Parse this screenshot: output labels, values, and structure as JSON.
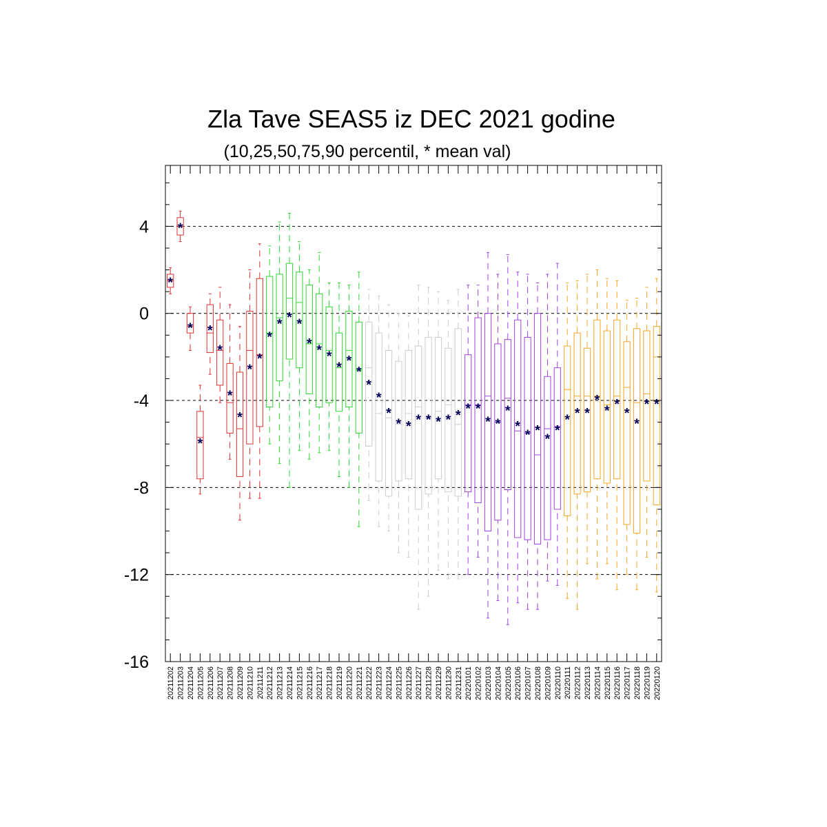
{
  "chart_data": {
    "type": "box",
    "title": "Zla Tave SEAS5 iz DEC 2021 godine",
    "subtitle": "(10,25,50,75,90 percentil, * mean val)",
    "xlabel": "",
    "ylabel": "",
    "ylim": [
      -16,
      6.8
    ],
    "yticks": [
      4,
      0,
      -4,
      -8,
      -12,
      -16
    ],
    "ytick_labels": [
      "4",
      "0",
      "-4",
      "-8",
      "-12",
      "-16"
    ],
    "grid": "dashed horizontal lines at major ticks",
    "colors": {
      "red": "#e03030",
      "green": "#2ed82e",
      "grey": "#cccccc",
      "purple": "#a040e0",
      "orange": "#f5a623",
      "mean_marker": "#00005a"
    },
    "categories": [
      "20211202",
      "20211203",
      "20211204",
      "20211205",
      "20211206",
      "20211207",
      "20211208",
      "20211209",
      "20211210",
      "20211211",
      "20211212",
      "20211213",
      "20211214",
      "20211215",
      "20211216",
      "20211217",
      "20211218",
      "20211219",
      "20211220",
      "20211221",
      "20211222",
      "20211223",
      "20211224",
      "20211225",
      "20211226",
      "20211227",
      "20211228",
      "20211229",
      "20211230",
      "20211231",
      "20220101",
      "20220102",
      "20220103",
      "20220104",
      "20220105",
      "20220106",
      "20220107",
      "20220108",
      "20220109",
      "20220110",
      "20220111",
      "20220112",
      "20220113",
      "20220114",
      "20220115",
      "20220116",
      "20220117",
      "20220118",
      "20220119",
      "20220120"
    ],
    "box_colors": [
      "red",
      "red",
      "red",
      "red",
      "red",
      "red",
      "red",
      "red",
      "red",
      "red",
      "green",
      "green",
      "green",
      "green",
      "green",
      "green",
      "green",
      "green",
      "green",
      "green",
      "grey",
      "grey",
      "grey",
      "grey",
      "grey",
      "grey",
      "grey",
      "grey",
      "grey",
      "grey",
      "purple",
      "purple",
      "purple",
      "purple",
      "purple",
      "purple",
      "purple",
      "purple",
      "purple",
      "purple",
      "orange",
      "orange",
      "orange",
      "orange",
      "orange",
      "orange",
      "orange",
      "orange",
      "orange",
      "orange"
    ],
    "p10": [
      0.9,
      3.3,
      -1.7,
      -8.3,
      -2.8,
      -4.1,
      -6.7,
      -9.5,
      -8.5,
      -8.5,
      -6.0,
      -6.9,
      -8.0,
      -6.3,
      -6.7,
      -6.4,
      -6.3,
      -7.5,
      -8.0,
      -9.8,
      -8.6,
      -9.8,
      -10.0,
      -11.0,
      -11.2,
      -13.6,
      -13.0,
      -11.8,
      -12.2,
      -12.2,
      -12.0,
      -11.2,
      -14.0,
      -13.2,
      -14.3,
      -13.3,
      -13.6,
      -13.6,
      -12.3,
      -12.5,
      -13.1,
      -13.6,
      -11.5,
      -12.2,
      -11.5,
      -12.7,
      -12.0,
      -12.7,
      -11.2,
      -12.8
    ],
    "p25": [
      1.2,
      3.6,
      -0.9,
      -7.6,
      -1.8,
      -3.3,
      -5.5,
      -7.5,
      -6.0,
      -5.2,
      -4.3,
      -3.1,
      -2.1,
      -2.5,
      -3.7,
      -4.3,
      -4.1,
      -4.5,
      -4.3,
      -5.5,
      -6.1,
      -7.7,
      -8.4,
      -7.7,
      -7.6,
      -9.0,
      -8.3,
      -7.6,
      -8.2,
      -8.4,
      -8.2,
      -8.7,
      -10.0,
      -9.5,
      -8.1,
      -10.3,
      -10.4,
      -10.6,
      -10.4,
      -9.0,
      -9.3,
      -8.3,
      -8.2,
      -7.6,
      -7.8,
      -7.6,
      -9.7,
      -10.1,
      -7.7,
      -8.8
    ],
    "p50": [
      1.5,
      4.0,
      -0.6,
      -5.7,
      -0.9,
      -1.7,
      -4.1,
      -5.3,
      -1.7,
      -1.9,
      -0.9,
      -0.2,
      0.7,
      0.5,
      -1.4,
      -1.4,
      -1.7,
      -2.5,
      -1.7,
      -2.6,
      -2.5,
      -4.6,
      -4.8,
      -5.1,
      -4.6,
      -4.3,
      -4.8,
      -4.5,
      -4.2,
      -5.1,
      -4.2,
      -4.2,
      -3.8,
      -5.0,
      -3.9,
      -5.4,
      -5.5,
      -6.5,
      -5.3,
      -5.2,
      -3.5,
      -3.8,
      -3.8,
      -3.8,
      -4.2,
      -3.8,
      -3.4,
      -4.1,
      -3.7,
      -2.0
    ],
    "p75": [
      1.8,
      4.4,
      0.0,
      -4.5,
      0.4,
      -0.3,
      -2.3,
      -2.7,
      0.1,
      1.6,
      1.7,
      1.8,
      2.3,
      1.9,
      1.3,
      0.9,
      0.3,
      -0.9,
      0.1,
      -0.4,
      -0.4,
      -0.9,
      -1.7,
      -2.2,
      -1.7,
      -1.5,
      -1.1,
      -1.1,
      -1.6,
      -0.7,
      -1.9,
      -0.2,
      0.0,
      -1.4,
      -1.2,
      -0.3,
      -1.1,
      0.0,
      -2.9,
      -2.5,
      -1.5,
      -0.9,
      -1.6,
      -0.3,
      -0.8,
      -0.3,
      -1.3,
      -0.7,
      -0.8,
      -0.6
    ],
    "p90": [
      2.1,
      4.7,
      0.3,
      -3.3,
      0.9,
      1.2,
      0.4,
      -0.6,
      2.0,
      3.2,
      3.1,
      4.2,
      4.6,
      3.3,
      2.0,
      2.8,
      1.4,
      1.4,
      1.3,
      1.9,
      1.1,
      0.8,
      0.4,
      0.0,
      -0.1,
      1.3,
      1.2,
      1.0,
      0.6,
      1.1,
      1.3,
      1.3,
      2.8,
      1.8,
      2.7,
      1.9,
      1.8,
      1.4,
      1.8,
      2.3,
      1.4,
      1.5,
      1.8,
      2.0,
      1.6,
      1.5,
      0.6,
      0.7,
      1.2,
      1.6
    ],
    "mean": [
      1.5,
      4.0,
      -0.6,
      -5.9,
      -0.7,
      -1.6,
      -3.7,
      -4.7,
      -2.5,
      -2.0,
      -1.0,
      -0.4,
      -0.1,
      -0.4,
      -1.3,
      -1.6,
      -1.9,
      -2.4,
      -2.1,
      -2.6,
      -3.2,
      -3.8,
      -4.5,
      -5.0,
      -5.1,
      -4.8,
      -4.8,
      -4.9,
      -4.8,
      -4.6,
      -4.3,
      -4.3,
      -4.9,
      -5.0,
      -4.4,
      -5.1,
      -5.5,
      -5.3,
      -5.7,
      -5.3,
      -4.8,
      -4.5,
      -4.5,
      -3.9,
      -4.4,
      -4.1,
      -4.5,
      -5.0,
      -4.1,
      -4.1
    ]
  }
}
